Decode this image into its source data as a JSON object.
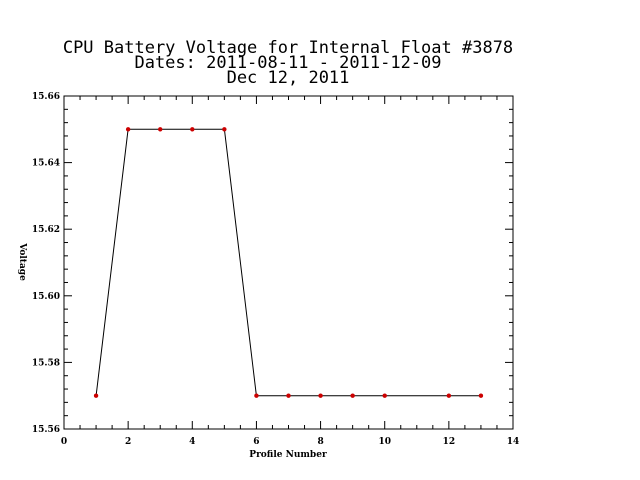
{
  "chart_data": {
    "type": "line",
    "title_lines": [
      "CPU Battery Voltage for Internal Float #3878",
      "Dates:  2011-08-11 -  2011-12-09",
      "Dec 12, 2011"
    ],
    "xlabel": "Profile Number",
    "ylabel": "Voltage",
    "xlim": [
      0,
      14
    ],
    "ylim": [
      15.56,
      15.66
    ],
    "x_ticks": [
      0,
      2,
      4,
      6,
      8,
      10,
      12,
      14
    ],
    "x_tick_labels": [
      "0",
      "2",
      "4",
      "6",
      "8",
      "10",
      "12",
      "14"
    ],
    "y_ticks": [
      15.56,
      15.58,
      15.6,
      15.62,
      15.64,
      15.66
    ],
    "y_tick_labels": [
      "15.56",
      "15.58",
      "15.60",
      "15.62",
      "15.64",
      "15.66"
    ],
    "grid": false,
    "series": [
      {
        "x": [
          1,
          2,
          3,
          4,
          5,
          6,
          7,
          8,
          9,
          10,
          12,
          13
        ],
        "y": [
          15.57,
          15.65,
          15.65,
          15.65,
          15.65,
          15.57,
          15.57,
          15.57,
          15.57,
          15.57,
          15.57,
          15.57
        ],
        "line_color": "#000000",
        "marker_color": "#cc0000"
      }
    ]
  }
}
